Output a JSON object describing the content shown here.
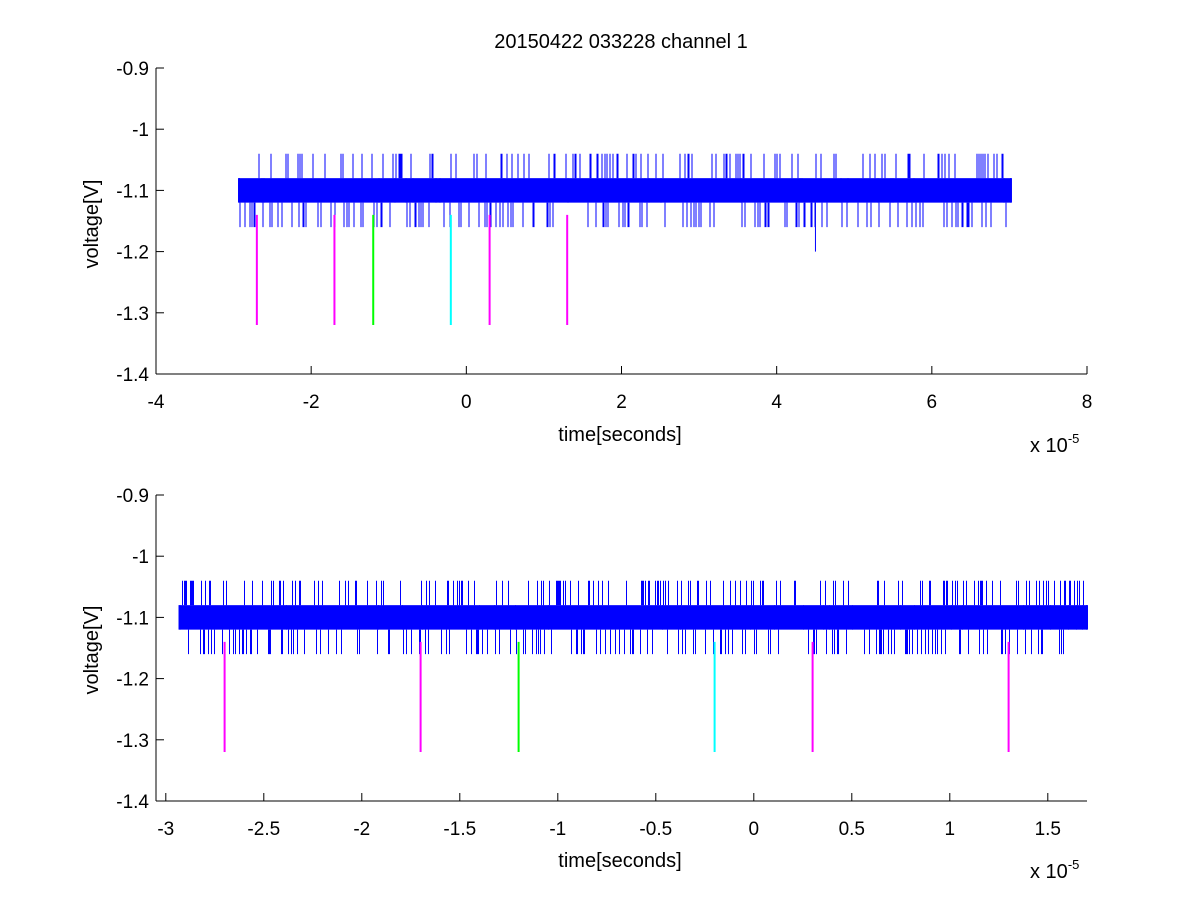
{
  "figure": {
    "title": "20150422 033228 channel 1"
  },
  "colors": {
    "signal": "#0000ff",
    "marker_magenta": "#ff00ff",
    "marker_green": "#00ff00",
    "marker_cyan": "#00ffff",
    "axis": "#000000"
  },
  "chart_data": [
    {
      "type": "line",
      "title": "20150422 033228 channel 1",
      "xlabel": "time[seconds]",
      "ylabel": "voltage[V]",
      "x_exponent_label": "x 10",
      "x_exponent_power": "-5",
      "xlim": [
        -4e-05,
        8e-05
      ],
      "ylim": [
        -1.4,
        -0.9
      ],
      "xticks": [
        -4e-05,
        -2e-05,
        0,
        2e-05,
        4e-05,
        6e-05,
        8e-05
      ],
      "xtick_labels": [
        "-4",
        "-2",
        "0",
        "2",
        "4",
        "6",
        "8"
      ],
      "yticks": [
        -0.9,
        -1.0,
        -1.1,
        -1.2,
        -1.3,
        -1.4
      ],
      "ytick_labels": [
        "-0.9",
        "-1",
        "-1.1",
        "-1.2",
        "-1.3",
        "-1.4"
      ],
      "grid": false,
      "series": [
        {
          "kind": "noisy-signal",
          "x_start": -2.93e-05,
          "x_end": 7.02e-05,
          "dense_band": [
            -1.12,
            -1.08
          ],
          "levels": [
            -1.04,
            -1.16
          ],
          "outliers": [
            {
              "x": 4.5e-05,
              "y": -1.2
            }
          ],
          "color": "#0000ff"
        }
      ],
      "markers": [
        {
          "x": -2.7e-05,
          "y_top": -1.14,
          "y_bottom": -1.32,
          "color": "#ff00ff"
        },
        {
          "x": -1.7e-05,
          "y_top": -1.14,
          "y_bottom": -1.32,
          "color": "#ff00ff"
        },
        {
          "x": -1.2e-05,
          "y_top": -1.14,
          "y_bottom": -1.32,
          "color": "#00ff00"
        },
        {
          "x": -2e-06,
          "y_top": -1.14,
          "y_bottom": -1.32,
          "color": "#00ffff"
        },
        {
          "x": 3e-06,
          "y_top": -1.14,
          "y_bottom": -1.32,
          "color": "#ff00ff"
        },
        {
          "x": 1.3e-05,
          "y_top": -1.14,
          "y_bottom": -1.32,
          "color": "#ff00ff"
        }
      ]
    },
    {
      "type": "line",
      "title": "",
      "xlabel": "time[seconds]",
      "ylabel": "voltage[V]",
      "x_exponent_label": "x 10",
      "x_exponent_power": "-5",
      "xlim": [
        -3.05e-05,
        1.7e-05
      ],
      "ylim": [
        -1.4,
        -0.9
      ],
      "xticks": [
        -3e-05,
        -2.5e-05,
        -2e-05,
        -1.5e-05,
        -1e-05,
        -5e-06,
        0,
        5e-06,
        1e-05,
        1.5e-05
      ],
      "xtick_labels": [
        "-3",
        "-2.5",
        "-2",
        "-1.5",
        "-1",
        "-0.5",
        "0",
        "0.5",
        "1",
        "1.5"
      ],
      "yticks": [
        -0.9,
        -1.0,
        -1.1,
        -1.2,
        -1.3,
        -1.4
      ],
      "ytick_labels": [
        "-0.9",
        "-1",
        "-1.1",
        "-1.2",
        "-1.3",
        "-1.4"
      ],
      "grid": false,
      "series": [
        {
          "kind": "noisy-signal",
          "x_start": -2.93e-05,
          "x_end": 1.7e-05,
          "dense_band": [
            -1.12,
            -1.08
          ],
          "levels": [
            -1.04,
            -1.16
          ],
          "outliers": [],
          "color": "#0000ff"
        }
      ],
      "markers": [
        {
          "x": -2.7e-05,
          "y_top": -1.14,
          "y_bottom": -1.32,
          "color": "#ff00ff"
        },
        {
          "x": -1.7e-05,
          "y_top": -1.14,
          "y_bottom": -1.32,
          "color": "#ff00ff"
        },
        {
          "x": -1.2e-05,
          "y_top": -1.14,
          "y_bottom": -1.32,
          "color": "#00ff00"
        },
        {
          "x": -2e-06,
          "y_top": -1.14,
          "y_bottom": -1.32,
          "color": "#00ffff"
        },
        {
          "x": 3e-06,
          "y_top": -1.14,
          "y_bottom": -1.32,
          "color": "#ff00ff"
        },
        {
          "x": 1.3e-05,
          "y_top": -1.14,
          "y_bottom": -1.32,
          "color": "#ff00ff"
        }
      ]
    }
  ]
}
